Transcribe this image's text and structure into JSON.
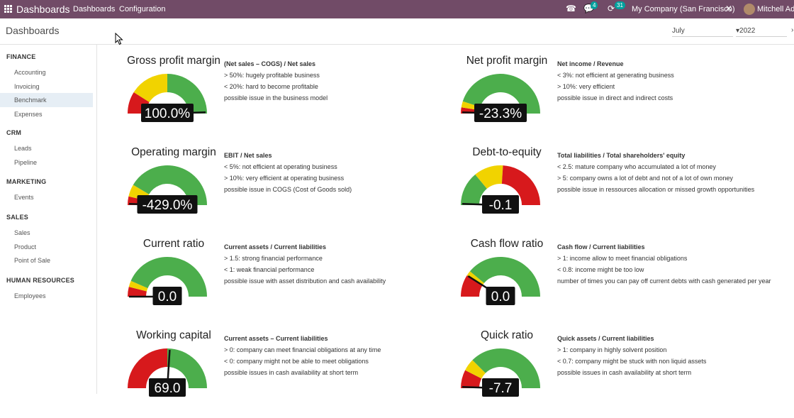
{
  "topbar": {
    "brand": "Dashboards",
    "menu": [
      "Dashboards",
      "Configuration"
    ],
    "chat_count": "4",
    "activity_count": "31",
    "company": "My Company (San Francisco)",
    "user": "Mitchell Admin"
  },
  "control_panel": {
    "title": "Dashboards",
    "month": "July",
    "year": "2022"
  },
  "sidebar": {
    "sections": [
      {
        "title": "FINANCE",
        "items": [
          "Accounting",
          "Invoicing",
          "Benchmark",
          "Expenses"
        ]
      },
      {
        "title": "CRM",
        "items": [
          "Leads",
          "Pipeline"
        ]
      },
      {
        "title": "MARKETING",
        "items": [
          "Events"
        ]
      },
      {
        "title": "SALES",
        "items": [
          "Sales",
          "Product",
          "Point of Sale"
        ]
      },
      {
        "title": "HUMAN RESOURCES",
        "items": [
          "Employees"
        ]
      }
    ],
    "active": "Benchmark"
  },
  "colors": {
    "red": "#d7191c",
    "yellow": "#f1d300",
    "green": "#4cae4c",
    "brand": "#714b67"
  },
  "cards": [
    {
      "title": "Gross profit margin",
      "value": "100.0%",
      "formula": "(Net sales – COGS) / Net sales",
      "lines": [
        "> 50%: hugely profitable business",
        "< 20%: hard to become profitable",
        "possible issue in the business model"
      ],
      "bands": [
        [
          "red",
          0.18
        ],
        [
          "yellow",
          0.5
        ],
        [
          "green",
          1.0
        ]
      ],
      "needle": 0.99
    },
    {
      "title": "Net profit margin",
      "value": "-23.3%",
      "formula": "Net income / Revenue",
      "lines": [
        "< 3%: not efficient at generating business",
        "> 10%: very efficient",
        "possible issue in direct and indirect costs"
      ],
      "bands": [
        [
          "red",
          0.05
        ],
        [
          "yellow",
          0.1
        ],
        [
          "green",
          1.0
        ]
      ],
      "needle": 0.01
    },
    {
      "title": "Operating margin",
      "value": "-429.0%",
      "formula": "EBIT / Net sales",
      "lines": [
        "< 5%: not efficient at operating business",
        "> 10%: very efficient at operating business",
        "possible issue in COGS (Cost of Goods sold)"
      ],
      "bands": [
        [
          "red",
          0.07
        ],
        [
          "yellow",
          0.17
        ],
        [
          "green",
          1.0
        ]
      ],
      "needle": 0.01
    },
    {
      "title": "Debt-to-equity",
      "value": "-0.1",
      "formula": "Total liabilities / Total shareholders' equity",
      "lines": [
        "< 2.5: mature company who accumulated a lot of money",
        "> 5: company owns a lot of debt and not of a lot of own money",
        "possible issue in ressources allocation or missed growth opportunities"
      ],
      "bands": [
        [
          "green",
          0.28
        ],
        [
          "yellow",
          0.52
        ],
        [
          "red",
          1.0
        ]
      ],
      "needle": 0.01
    },
    {
      "title": "Current ratio",
      "value": "0.0",
      "formula": "Current assets / Current liabilities",
      "lines": [
        "> 1.5: strong financial performance",
        "< 1: weak financial performance",
        "possible issue with asset distribution and cash availability"
      ],
      "bands": [
        [
          "red",
          0.08
        ],
        [
          "yellow",
          0.13
        ],
        [
          "green",
          1.0
        ]
      ],
      "needle": 0.0
    },
    {
      "title": "Cash flow ratio",
      "value": "0.0",
      "formula": "Cash flow / Current liabilities",
      "lines": [
        "> 1: income allow to meet financial obligations",
        "< 0.8: income might be too low",
        "number of times you can pay off current debts with cash generated per year"
      ],
      "bands": [
        [
          "red",
          0.18
        ],
        [
          "yellow",
          0.22
        ],
        [
          "green",
          1.0
        ]
      ],
      "needle": 0.18
    },
    {
      "title": "Working capital",
      "value": "69.0",
      "formula": "Current assets – Current liabilities",
      "lines": [
        "> 0: company can meet financial obligations at any time",
        "< 0: company might not be able to meet obligations",
        "possible issues in cash availability at short term"
      ],
      "bands": [
        [
          "red",
          0.5
        ],
        [
          "green",
          1.0
        ]
      ],
      "needle": 0.52
    },
    {
      "title": "Quick ratio",
      "value": "-7.7",
      "formula": "Quick assets / Current liabilities",
      "lines": [
        "> 1: company in highly solvent position",
        "< 0.7: company might be stuck with non liquid assets",
        "possible issues in cash availability at short term"
      ],
      "bands": [
        [
          "red",
          0.15
        ],
        [
          "yellow",
          0.25
        ],
        [
          "green",
          1.0
        ]
      ],
      "needle": 0.01
    }
  ]
}
